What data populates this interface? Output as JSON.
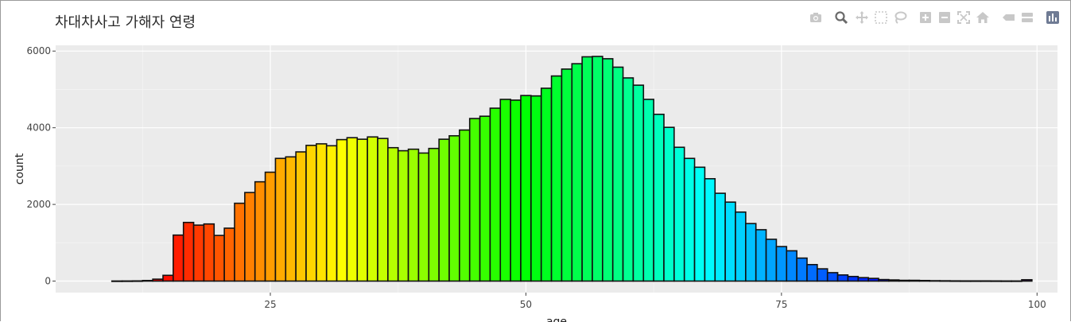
{
  "chart_data": {
    "type": "bar",
    "title": "차대차사고 가해자 연령",
    "xlabel": "age",
    "ylabel": "count",
    "xlim": [
      4,
      102
    ],
    "ylim": [
      -300,
      6150
    ],
    "xticks": [
      25,
      50,
      75,
      100
    ],
    "yticks": [
      0,
      2000,
      4000,
      6000
    ],
    "tick_labels_x": [
      "25",
      "50",
      "75",
      "100"
    ],
    "tick_labels_y": [
      "0",
      "2000",
      "4000",
      "6000"
    ],
    "grid": true,
    "bin_width": 1,
    "x": [
      10,
      11,
      12,
      13,
      14,
      15,
      16,
      17,
      18,
      19,
      20,
      21,
      22,
      23,
      24,
      25,
      26,
      27,
      28,
      29,
      30,
      31,
      32,
      33,
      34,
      35,
      36,
      37,
      38,
      39,
      40,
      41,
      42,
      43,
      44,
      45,
      46,
      47,
      48,
      49,
      50,
      51,
      52,
      53,
      54,
      55,
      56,
      57,
      58,
      59,
      60,
      61,
      62,
      63,
      64,
      65,
      66,
      67,
      68,
      69,
      70,
      71,
      72,
      73,
      74,
      75,
      76,
      77,
      78,
      79,
      80,
      81,
      82,
      83,
      84,
      85,
      86,
      87,
      88,
      89,
      90,
      91,
      92,
      93,
      94,
      95,
      96,
      97,
      98,
      99
    ],
    "values": [
      2,
      3,
      5,
      15,
      50,
      150,
      1200,
      1530,
      1460,
      1490,
      1190,
      1380,
      2030,
      2310,
      2590,
      2840,
      3200,
      3240,
      3370,
      3540,
      3580,
      3530,
      3690,
      3740,
      3700,
      3760,
      3720,
      3480,
      3400,
      3440,
      3340,
      3460,
      3700,
      3790,
      3940,
      4240,
      4300,
      4510,
      4740,
      4720,
      4840,
      4830,
      5030,
      5350,
      5530,
      5670,
      5850,
      5860,
      5800,
      5580,
      5300,
      5110,
      4740,
      4350,
      4010,
      3490,
      3200,
      2970,
      2670,
      2290,
      2060,
      1800,
      1500,
      1340,
      1090,
      900,
      790,
      600,
      430,
      320,
      220,
      160,
      120,
      90,
      70,
      40,
      30,
      20,
      20,
      15,
      10,
      8,
      6,
      5,
      5,
      5,
      4,
      3,
      3,
      35
    ]
  },
  "modebar": {
    "icons": [
      "camera-icon",
      "zoom-icon",
      "pan-icon",
      "box-select-icon",
      "lasso-icon",
      "zoom-in-icon",
      "zoom-out-icon",
      "autoscale-icon",
      "reset-axes-icon",
      "spike-lines-icon",
      "compare-hover-icon",
      "plotly-logo-icon"
    ],
    "color": "#c8c8c8"
  }
}
